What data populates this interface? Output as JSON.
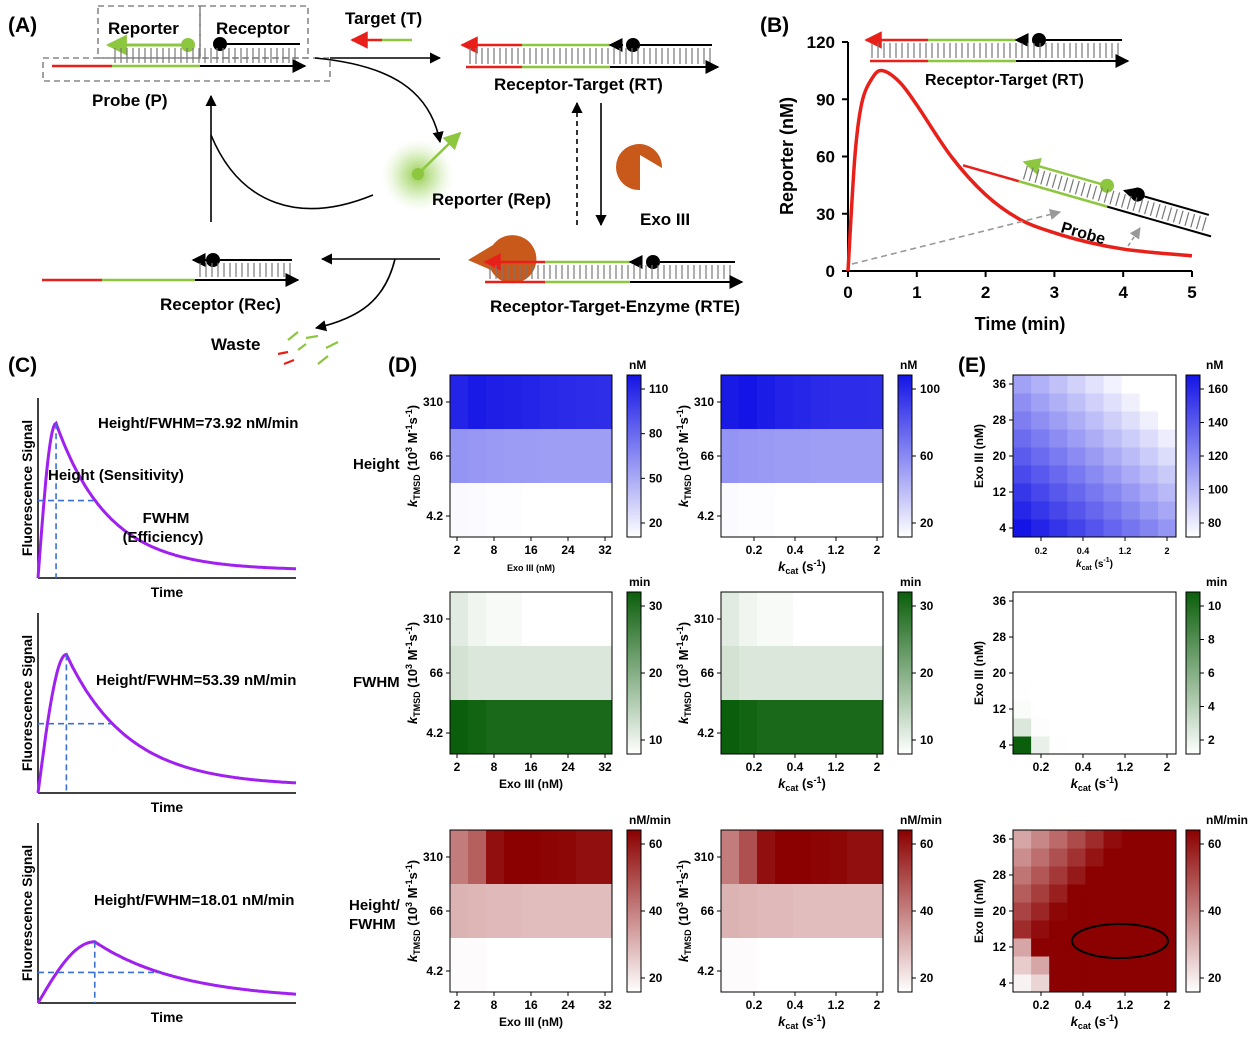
{
  "panels": {
    "A": "(A)",
    "B": "(B)",
    "C": "(C)",
    "D": "(D)",
    "E": "(E)"
  },
  "panelA": {
    "reporter": "Reporter",
    "receptor": "Receptor",
    "target": "Target (T)",
    "probe": "Probe (P)",
    "rt": "Receptor-Target (RT)",
    "rep": "Reporter (Rep)",
    "exo": "Exo III",
    "rte": "Receptor-Target-Enzyme (RTE)",
    "rec": "Receptor (Rec)",
    "waste": "Waste"
  },
  "panelB": {
    "xlabel": "Time (min)",
    "ylabel": "Reporter (nM)",
    "rt": "Receptor-Target (RT)",
    "probe": "Probe",
    "xticks": [
      "0",
      "1",
      "2",
      "3",
      "4",
      "5"
    ],
    "yticks": [
      "0",
      "30",
      "60",
      "90",
      "120"
    ]
  },
  "panelC": {
    "ylabel": "Fluorescence Signal",
    "xlabel": "Time",
    "ratios": [
      "Height/FWHM=73.92 nM/min",
      "Height/FWHM=53.39 nM/min",
      "Height/FWHM=18.01 nM/min"
    ],
    "height_label": "Height (Sensitivity)",
    "fwhm_label1": "FWHM",
    "fwhm_label2": "(Efficiency)"
  },
  "panelD": {
    "rows": [
      "Height",
      "FWHM",
      "Height/",
      "FWHM"
    ],
    "kt_ticks": [
      "310",
      "66",
      "4.2"
    ],
    "exo_ticks": [
      "2",
      "8",
      "16",
      "24",
      "32"
    ],
    "kcat_ticks": [
      "0.2",
      "0.4",
      "1.2",
      "2"
    ],
    "units": [
      "nM",
      "min",
      "nM/min"
    ],
    "exo_label": "Exo III (nM)",
    "cb": [
      [
        "110",
        "80",
        "50",
        "20"
      ],
      [
        "100",
        "60",
        "20"
      ],
      [
        "30",
        "20",
        "10"
      ],
      [
        "30",
        "20",
        "10"
      ],
      [
        "60",
        "40",
        "20"
      ],
      [
        "60",
        "40",
        "20"
      ]
    ]
  },
  "panelE": {
    "exo_ticks": [
      "36",
      "28",
      "20",
      "12",
      "4"
    ],
    "kcat_ticks": [
      "0.2",
      "0.4",
      "1.2",
      "2"
    ],
    "ylabel": "Exo III (nM)",
    "units": [
      "nM",
      "min",
      "nM/min"
    ],
    "cb": [
      [
        "160",
        "140",
        "120",
        "100",
        "80"
      ],
      [
        "10",
        "8",
        "6",
        "4",
        "2"
      ],
      [
        "60",
        "40",
        "20"
      ]
    ]
  },
  "chart_data": [
    {
      "type": "line",
      "ylabel": "Reporter (nM)",
      "xlabel": "Time (min)",
      "xlim": [
        0,
        5
      ],
      "ylim": [
        0,
        120
      ],
      "series": [
        {
          "values": [
            [
              0,
              0
            ],
            [
              0.1,
              60
            ],
            [
              0.2,
              88
            ],
            [
              0.35,
              101
            ],
            [
              0.5,
              105
            ],
            [
              0.75,
              99
            ],
            [
              1,
              87
            ],
            [
              1.5,
              60
            ],
            [
              2,
              40
            ],
            [
              2.5,
              27
            ],
            [
              3,
              20
            ],
            [
              3.5,
              15
            ],
            [
              4,
              11.5
            ],
            [
              4.5,
              9.5
            ],
            [
              5,
              8
            ]
          ]
        }
      ]
    },
    {
      "type": "line",
      "xlabel": "Time",
      "ylabel": "Fluorescence Signal",
      "series": [
        {
          "peak_time": 0.07,
          "peak": 0.86
        }
      ]
    },
    {
      "type": "line",
      "xlabel": "Time",
      "ylabel": "Fluorescence Signal",
      "series": [
        {
          "peak_time": 0.11,
          "peak": 0.77
        }
      ]
    },
    {
      "type": "line",
      "xlabel": "Time",
      "ylabel": "Fluorescence Signal",
      "series": [
        {
          "peak_time": 0.22,
          "peak": 0.34
        }
      ]
    },
    {
      "type": "heatmap",
      "title": "Height",
      "unit": "nM",
      "yticks": [
        "310",
        "66",
        "4.2"
      ],
      "xlabel": "Exo III (nM)",
      "xticks": [
        "2",
        "8",
        "16",
        "24",
        "32"
      ],
      "values": [
        [
          120,
          125,
          123,
          122,
          120,
          118,
          117,
          116,
          115
        ],
        [
          65,
          63,
          62,
          61,
          61,
          60,
          60,
          60,
          60
        ],
        [
          15,
          14,
          13,
          13,
          12,
          12,
          12,
          12,
          12
        ]
      ]
    },
    {
      "type": "heatmap",
      "title": "Height",
      "unit": "nM",
      "yticks": [
        "310",
        "66",
        "4.2"
      ],
      "xlabel": "kcat (s-1)",
      "xticks": [
        "0.2",
        "0.4",
        "1.2",
        "2"
      ],
      "values": [
        [
          125,
          128,
          124,
          121,
          119,
          117,
          116,
          116,
          115
        ],
        [
          65,
          63,
          62,
          61,
          61,
          60,
          60,
          60,
          60
        ],
        [
          14,
          13,
          13,
          12,
          12,
          12,
          12,
          12,
          12
        ]
      ]
    },
    {
      "type": "heatmap",
      "title": "FWHM",
      "unit": "min",
      "yticks": [
        "310",
        "66",
        "4.2"
      ],
      "xlabel": "Exo III (nM)",
      "xticks": [
        "2",
        "8",
        "16",
        "24",
        "32"
      ],
      "values": [
        [
          6,
          4,
          3,
          3,
          2,
          2,
          2,
          2,
          2
        ],
        [
          8,
          7,
          7,
          7,
          7,
          7,
          7,
          7,
          7
        ],
        [
          35,
          34,
          33,
          33,
          33,
          33,
          33,
          33,
          33
        ]
      ]
    },
    {
      "type": "heatmap",
      "title": "FWHM",
      "unit": "min",
      "yticks": [
        "310",
        "66",
        "4.2"
      ],
      "xlabel": "kcat (s-1)",
      "xticks": [
        "0.2",
        "0.4",
        "1.2",
        "2"
      ],
      "values": [
        [
          6,
          4,
          3,
          3,
          2,
          2,
          2,
          2,
          2
        ],
        [
          8,
          7,
          7,
          7,
          7,
          7,
          7,
          7,
          7
        ],
        [
          35,
          34,
          33,
          33,
          33,
          33,
          33,
          33,
          33
        ]
      ]
    },
    {
      "type": "heatmap",
      "title": "Height/FWHM",
      "unit": "nM/min",
      "yticks": [
        "310",
        "66",
        "4.2"
      ],
      "xlabel": "Exo III (nM)",
      "xticks": [
        "2",
        "8",
        "16",
        "24",
        "32"
      ],
      "values": [
        [
          40,
          48,
          70,
          74,
          74,
          73,
          72,
          70,
          70
        ],
        [
          25,
          24,
          23,
          23,
          22,
          22,
          22,
          22,
          22
        ],
        [
          5,
          5,
          4,
          4,
          4,
          4,
          4,
          4,
          4
        ]
      ]
    },
    {
      "type": "heatmap",
      "title": "Height/FWHM",
      "unit": "nM/min",
      "yticks": [
        "310",
        "66",
        "4.2"
      ],
      "xlabel": "kcat (s-1)",
      "xticks": [
        "0.2",
        "0.4",
        "1.2",
        "2"
      ],
      "values": [
        [
          40,
          52,
          70,
          74,
          74,
          73,
          72,
          70,
          70
        ],
        [
          25,
          24,
          23,
          23,
          22,
          22,
          22,
          22,
          22
        ],
        [
          5,
          5,
          4,
          4,
          4,
          4,
          4,
          4,
          4
        ]
      ]
    },
    {
      "type": "heatmap",
      "unit": "nM",
      "ylabel": "Exo III (nM)",
      "xlabel": "kcat (s-1)",
      "yticks": [
        "36",
        "28",
        "20",
        "12",
        "4"
      ],
      "xticks": [
        "0.2",
        "0.4",
        "1.2",
        "2"
      ],
      "range": [
        80,
        160
      ]
    },
    {
      "type": "heatmap",
      "unit": "min",
      "ylabel": "Exo III (nM)",
      "xlabel": "kcat (s-1)",
      "yticks": [
        "36",
        "28",
        "20",
        "12",
        "4"
      ],
      "xticks": [
        "0.2",
        "0.4",
        "1.2",
        "2"
      ],
      "range": [
        1.5,
        10.5
      ]
    },
    {
      "type": "heatmap",
      "unit": "nM/min",
      "ylabel": "Exo III (nM)",
      "xlabel": "kcat (s-1)",
      "yticks": [
        "36",
        "28",
        "20",
        "12",
        "4"
      ],
      "xticks": [
        "0.2",
        "0.4",
        "1.2",
        "2"
      ],
      "range": [
        15,
        78
      ]
    }
  ]
}
